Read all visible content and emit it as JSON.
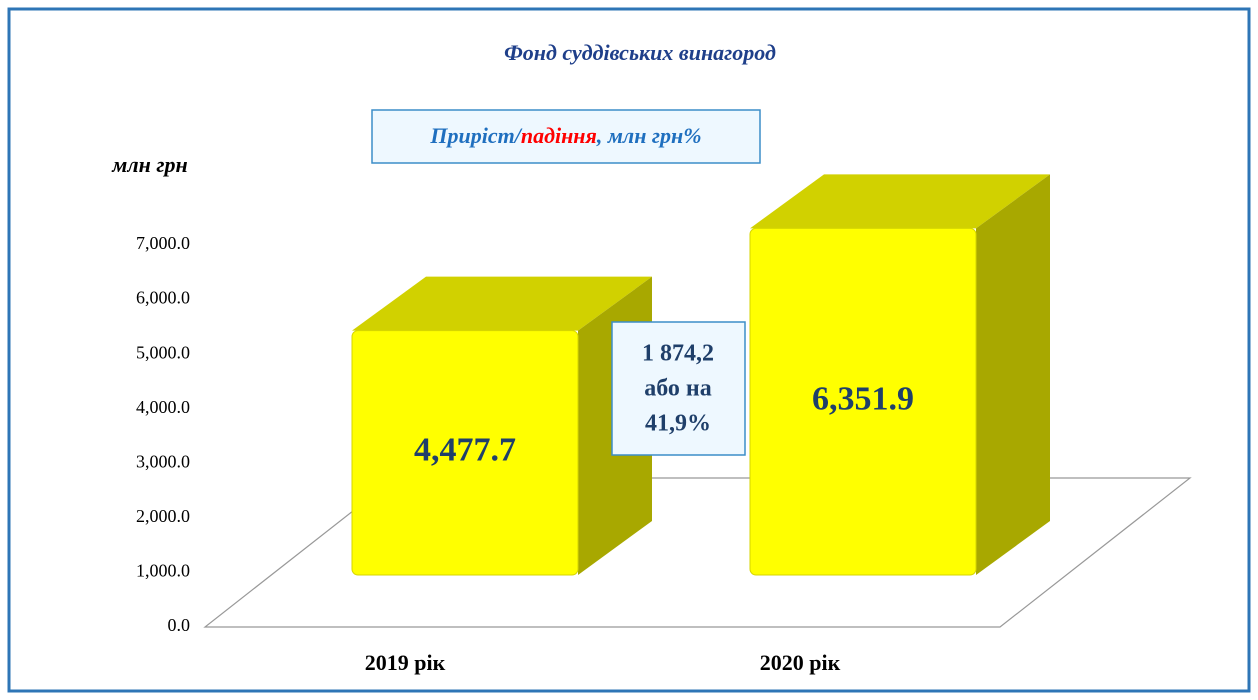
{
  "chart_data": {
    "type": "bar3d",
    "title": "Фонд суддівських винагород",
    "y_label": "млн грн",
    "legend_parts": [
      "Приріст/",
      "падіння",
      ", млн грн%"
    ],
    "legend_colors": [
      "#1f6fbf",
      "#ff0000",
      "#1f6fbf"
    ],
    "annotation": [
      "1 874,2",
      "або на",
      "41,9%"
    ],
    "categories": [
      "2019 рік",
      "2020 рік"
    ],
    "values": [
      4477.7,
      6351.9
    ],
    "value_labels": [
      "4,477.7",
      "6,351.9"
    ],
    "color": "#ffff00",
    "ylim": [
      0,
      7000
    ],
    "yticks": [
      {
        "value": 0,
        "label": "0.0"
      },
      {
        "value": 1000,
        "label": "1,000.0"
      },
      {
        "value": 2000,
        "label": "2,000.0"
      },
      {
        "value": 3000,
        "label": "3,000.0"
      },
      {
        "value": 4000,
        "label": "4,000.0"
      },
      {
        "value": 5000,
        "label": "5,000.0"
      },
      {
        "value": 6000,
        "label": "6,000.0"
      },
      {
        "value": 7000,
        "label": "7,000.0"
      }
    ],
    "grid": false
  }
}
